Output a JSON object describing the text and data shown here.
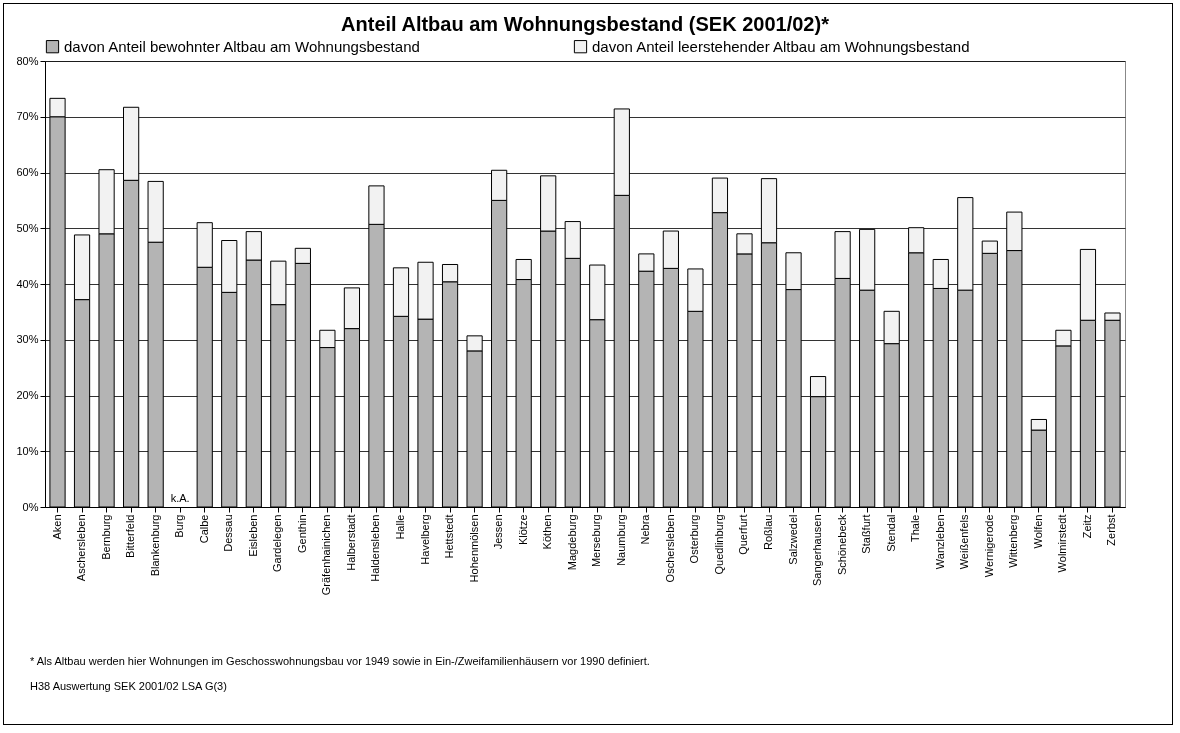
{
  "chart_data": {
    "type": "bar",
    "title": "Anteil Altbau am Wohnungsbestand (SEK 2001/02)*",
    "stacked": true,
    "categories": [
      "Aken",
      "Aschersleben",
      "Bernburg",
      "Bitterfeld",
      "Blankenburg",
      "Burg",
      "Calbe",
      "Dessau",
      "Eisleben",
      "Gardelegen",
      "Genthin",
      "Gräfenhainichen",
      "Halberstadt",
      "Haldensleben",
      "Halle",
      "Havelberg",
      "Hettstedt",
      "Hohenmölsen",
      "Jessen",
      "Klötze",
      "Köthen",
      "Magdeburg",
      "Merseburg",
      "Naumburg",
      "Nebra",
      "Oschersleben",
      "Osterburg",
      "Quedlinburg",
      "Querfurt",
      "Roßlau",
      "Salzwedel",
      "Sangerhausen",
      "Schönebeck",
      "Staßfurt",
      "Stendal",
      "Thale",
      "Wanzleben",
      "Weißenfels",
      "Wernigerode",
      "Wittenberg",
      "Wolfen",
      "Wolmirstedt",
      "Zeitz",
      "Zerbst"
    ],
    "series": [
      {
        "name": "davon Anteil bewohnter Altbau am Wohnungsbestand",
        "color": "#b4b4b4",
        "values": [
          70,
          37.2,
          49,
          58.6,
          47.5,
          null,
          43,
          38.5,
          44.3,
          36.3,
          43.7,
          28.6,
          32,
          50.7,
          34.2,
          33.7,
          40.4,
          28,
          55,
          40.8,
          49.5,
          44.6,
          33.6,
          55.9,
          42.3,
          42.8,
          35.1,
          52.8,
          45.4,
          47.4,
          39,
          19.8,
          41,
          38.9,
          29.3,
          45.6,
          39.2,
          38.9,
          45.5,
          46,
          13.8,
          28.9,
          33.5,
          33.5
        ]
      },
      {
        "name": "davon Anteil leerstehender Altbau am Wohnungsbestand",
        "color": "#f2f2f2",
        "values": [
          3.3,
          11.6,
          11.5,
          13.1,
          10.9,
          null,
          8,
          9.3,
          5.1,
          7.8,
          2.7,
          3.1,
          7.3,
          6.9,
          8.7,
          10.2,
          3.1,
          2.7,
          5.4,
          3.6,
          9.9,
          6.6,
          9.8,
          15.5,
          3.1,
          6.7,
          7.6,
          6.2,
          3.6,
          11.5,
          6.6,
          3.6,
          8.4,
          10.9,
          5.8,
          4.5,
          5.2,
          16.6,
          2.2,
          6.9,
          1.9,
          2.8,
          12.7,
          1.3
        ]
      }
    ],
    "ylim": [
      0,
      80
    ],
    "yticks": [
      {
        "value": 0,
        "label": "0%"
      },
      {
        "value": 10,
        "label": "10%"
      },
      {
        "value": 20,
        "label": "20%"
      },
      {
        "value": 30,
        "label": "30%"
      },
      {
        "value": 40,
        "label": "40%"
      },
      {
        "value": 50,
        "label": "50%"
      },
      {
        "value": 60,
        "label": "60%"
      },
      {
        "value": 70,
        "label": "70%"
      },
      {
        "value": 80,
        "label": "80%"
      }
    ],
    "grid": "y",
    "legend": "top",
    "annotations": [
      "k.A.",
      "* Als Altbau werden hier Wohnungen im Geschosswohnungsbau vor 1949 sowie in Ein-/Zweifamilienhäusern vor 1990 definiert.",
      "H38 Auswertung SEK 2001/02 LSA G(3)"
    ]
  }
}
